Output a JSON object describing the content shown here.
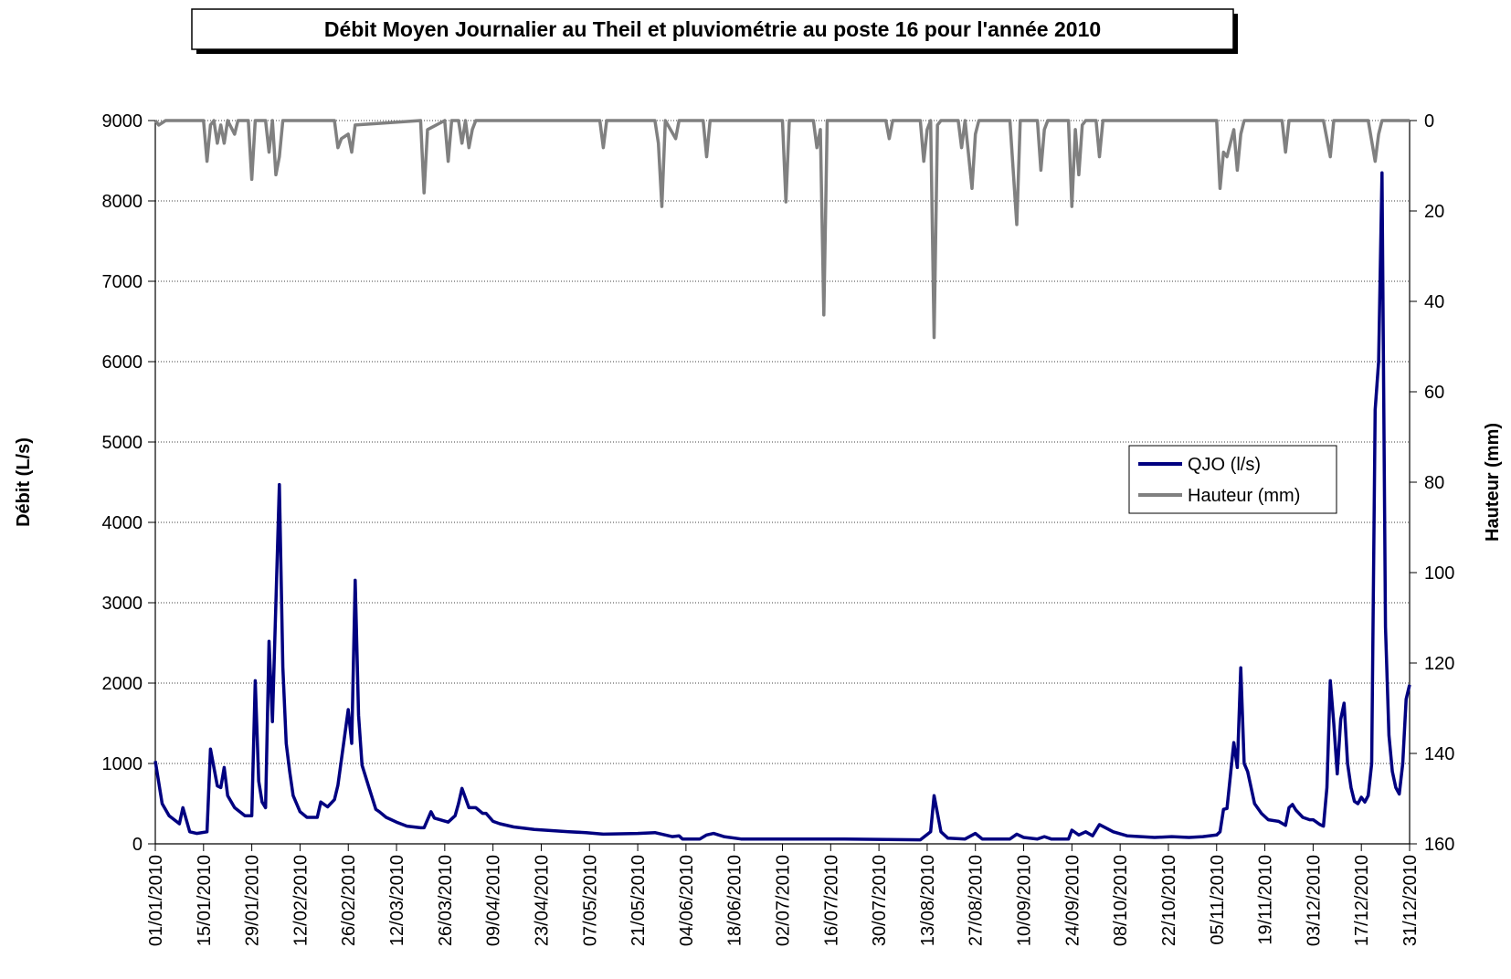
{
  "chart_data": {
    "type": "line",
    "title": "Débit Moyen Journalier au Theil et pluviométrie au poste 16 pour l'année 2010",
    "y_label": "Débit (L/s)",
    "y2_label": "Hauteur (mm)",
    "xlim": [
      "01/01/2010",
      "31/12/2010"
    ],
    "xticks": [
      "01/01/2010",
      "15/01/2010",
      "29/01/2010",
      "12/02/2010",
      "26/02/2010",
      "12/03/2010",
      "26/03/2010",
      "09/04/2010",
      "23/04/2010",
      "07/05/2010",
      "21/05/2010",
      "04/06/2010",
      "18/06/2010",
      "02/07/2010",
      "16/07/2010",
      "30/07/2010",
      "13/08/2010",
      "27/08/2010",
      "10/09/2010",
      "24/09/2010",
      "08/10/2010",
      "22/10/2010",
      "05/11/2010",
      "19/11/2010",
      "03/12/2010",
      "17/12/2010",
      "31/12/2010"
    ],
    "ylim": [
      0,
      9000
    ],
    "yticks": [
      0,
      1000,
      2000,
      3000,
      4000,
      5000,
      6000,
      7000,
      8000,
      9000
    ],
    "y2lim": [
      160,
      0
    ],
    "y2ticks": [
      0,
      20,
      40,
      60,
      80,
      100,
      120,
      140,
      160
    ],
    "grid": true,
    "legend": "right",
    "series": [
      {
        "name": "QJO (l/s)",
        "color": "#000080",
        "axis": "y",
        "x": [
          "01/01/2010",
          "03/01/2010",
          "05/01/2010",
          "08/01/2010",
          "09/01/2010",
          "11/01/2010",
          "13/01/2010",
          "16/01/2010",
          "17/01/2010",
          "19/01/2010",
          "20/01/2010",
          "21/01/2010",
          "22/01/2010",
          "24/01/2010",
          "27/01/2010",
          "29/01/2010",
          "30/01/2010",
          "31/01/2010",
          "01/02/2010",
          "02/02/2010",
          "03/02/2010",
          "04/02/2010",
          "06/02/2010",
          "07/02/2010",
          "08/02/2010",
          "09/02/2010",
          "10/02/2010",
          "12/02/2010",
          "14/02/2010",
          "17/02/2010",
          "18/02/2010",
          "20/02/2010",
          "22/02/2010",
          "23/02/2010",
          "26/02/2010",
          "27/02/2010",
          "28/02/2010",
          "01/03/2010",
          "02/03/2010",
          "04/03/2010",
          "06/03/2010",
          "07/03/2010",
          "09/03/2010",
          "12/03/2010",
          "15/03/2010",
          "19/03/2010",
          "20/03/2010",
          "22/03/2010",
          "23/03/2010",
          "27/03/2010",
          "29/03/2010",
          "30/03/2010",
          "31/03/2010",
          "02/04/2010",
          "04/04/2010",
          "06/04/2010",
          "07/04/2010",
          "09/04/2010",
          "11/04/2010",
          "15/04/2010",
          "21/04/2010",
          "01/05/2010",
          "06/05/2010",
          "11/05/2010",
          "21/05/2010",
          "26/05/2010",
          "31/05/2010",
          "02/06/2010",
          "03/06/2010",
          "08/06/2010",
          "10/06/2010",
          "12/06/2010",
          "15/06/2010",
          "20/06/2010",
          "30/06/2010",
          "20/07/2010",
          "11/08/2010",
          "14/08/2010",
          "15/08/2010",
          "17/08/2010",
          "19/08/2010",
          "24/08/2010",
          "27/08/2010",
          "29/08/2010",
          "06/09/2010",
          "08/09/2010",
          "10/09/2010",
          "14/09/2010",
          "16/09/2010",
          "18/09/2010",
          "23/09/2010",
          "24/09/2010",
          "26/09/2010",
          "28/09/2010",
          "30/09/2010",
          "02/10/2010",
          "06/10/2010",
          "10/10/2010",
          "18/10/2010",
          "23/10/2010",
          "28/10/2010",
          "01/11/2010",
          "05/11/2010",
          "06/11/2010",
          "07/11/2010",
          "08/11/2010",
          "10/11/2010",
          "11/11/2010",
          "12/11/2010",
          "13/11/2010",
          "14/11/2010",
          "16/11/2010",
          "18/11/2010",
          "20/11/2010",
          "23/11/2010",
          "25/11/2010",
          "26/11/2010",
          "27/11/2010",
          "28/11/2010",
          "30/11/2010",
          "02/12/2010",
          "03/12/2010",
          "05/12/2010",
          "06/12/2010",
          "07/12/2010",
          "08/12/2010",
          "09/12/2010",
          "10/12/2010",
          "11/12/2010",
          "12/12/2010",
          "13/12/2010",
          "14/12/2010",
          "15/12/2010",
          "16/12/2010",
          "17/12/2010",
          "18/12/2010",
          "19/12/2010",
          "20/12/2010",
          "21/12/2010",
          "22/12/2010",
          "23/12/2010",
          "24/12/2010",
          "25/12/2010",
          "26/12/2010",
          "27/12/2010",
          "28/12/2010",
          "29/12/2010",
          "30/12/2010",
          "31/12/2010"
        ],
        "values": [
          1030,
          500,
          350,
          250,
          450,
          150,
          130,
          150,
          1180,
          720,
          700,
          950,
          600,
          450,
          350,
          350,
          2030,
          780,
          520,
          450,
          2520,
          1520,
          4470,
          2200,
          1250,
          900,
          600,
          400,
          330,
          330,
          520,
          460,
          550,
          730,
          1670,
          1250,
          3280,
          1600,
          980,
          700,
          430,
          400,
          330,
          270,
          220,
          200,
          200,
          400,
          320,
          270,
          350,
          500,
          690,
          450,
          450,
          380,
          380,
          280,
          250,
          210,
          180,
          150,
          140,
          120,
          130,
          140,
          90,
          100,
          60,
          60,
          110,
          130,
          90,
          60,
          60,
          60,
          50,
          150,
          600,
          150,
          70,
          60,
          130,
          60,
          60,
          120,
          80,
          60,
          90,
          60,
          60,
          170,
          110,
          150,
          100,
          240,
          150,
          100,
          80,
          90,
          80,
          90,
          110,
          150,
          430,
          440,
          1260,
          950,
          2190,
          1000,
          900,
          500,
          380,
          300,
          280,
          230,
          450,
          490,
          420,
          330,
          300,
          300,
          240,
          220,
          700,
          2030,
          1500,
          870,
          1550,
          1750,
          1000,
          700,
          530,
          500,
          580,
          520,
          600,
          1000,
          5400,
          6000,
          8350,
          2700,
          1350,
          900,
          700,
          620,
          1000,
          1800,
          1980
        ]
      },
      {
        "name": "Hauteur (mm)",
        "color": "#808080",
        "axis": "y2",
        "x": [
          "01/01/2010",
          "02/01/2010",
          "04/01/2010",
          "15/01/2010",
          "16/01/2010",
          "17/01/2010",
          "18/01/2010",
          "19/01/2010",
          "20/01/2010",
          "21/01/2010",
          "22/01/2010",
          "24/01/2010",
          "25/01/2010",
          "28/01/2010",
          "29/01/2010",
          "30/01/2010",
          "02/02/2010",
          "03/02/2010",
          "04/02/2010",
          "05/02/2010",
          "06/02/2010",
          "07/02/2010",
          "22/02/2010",
          "23/02/2010",
          "24/02/2010",
          "26/02/2010",
          "27/02/2010",
          "28/02/2010",
          "19/03/2010",
          "20/03/2010",
          "21/03/2010",
          "26/03/2010",
          "27/03/2010",
          "28/03/2010",
          "30/03/2010",
          "31/03/2010",
          "01/04/2010",
          "02/04/2010",
          "03/04/2010",
          "04/04/2010",
          "10/05/2010",
          "11/05/2010",
          "12/05/2010",
          "26/05/2010",
          "27/05/2010",
          "28/05/2010",
          "29/05/2010",
          "01/06/2010",
          "02/06/2010",
          "09/06/2010",
          "10/06/2010",
          "11/06/2010",
          "02/07/2010",
          "03/07/2010",
          "04/07/2010",
          "11/07/2010",
          "12/07/2010",
          "13/07/2010",
          "14/07/2010",
          "15/07/2010",
          "01/08/2010",
          "02/08/2010",
          "03/08/2010",
          "11/08/2010",
          "12/08/2010",
          "13/08/2010",
          "14/08/2010",
          "15/08/2010",
          "16/08/2010",
          "17/08/2010",
          "22/08/2010",
          "23/08/2010",
          "24/08/2010",
          "26/08/2010",
          "27/08/2010",
          "28/08/2010",
          "06/09/2010",
          "08/09/2010",
          "09/09/2010",
          "14/09/2010",
          "15/09/2010",
          "16/09/2010",
          "17/09/2010",
          "23/09/2010",
          "24/09/2010",
          "25/09/2010",
          "26/09/2010",
          "27/09/2010",
          "28/09/2010",
          "01/10/2010",
          "02/10/2010",
          "03/10/2010",
          "05/11/2010",
          "06/11/2010",
          "07/11/2010",
          "08/11/2010",
          "10/11/2010",
          "11/11/2010",
          "12/11/2010",
          "13/11/2010",
          "24/11/2010",
          "25/11/2010",
          "26/11/2010",
          "06/12/2010",
          "08/12/2010",
          "09/12/2010",
          "19/12/2010",
          "21/12/2010",
          "22/12/2010",
          "23/12/2010",
          "31/12/2010"
        ],
        "values": [
          0,
          1,
          0,
          0,
          9,
          1,
          0,
          5,
          1,
          5,
          0,
          3,
          0,
          0,
          13,
          0,
          0,
          7,
          0,
          12,
          8,
          0,
          0,
          6,
          4,
          3,
          7,
          1,
          0,
          16,
          2,
          0,
          9,
          0,
          0,
          5,
          0,
          6,
          2,
          0,
          0,
          6,
          0,
          0,
          5,
          19,
          0,
          4,
          0,
          0,
          8,
          0,
          0,
          18,
          0,
          0,
          6,
          2,
          43,
          0,
          0,
          4,
          0,
          0,
          9,
          2,
          0,
          48,
          1,
          0,
          0,
          6,
          0,
          15,
          3,
          0,
          0,
          23,
          0,
          0,
          11,
          2,
          0,
          0,
          19,
          2,
          12,
          1,
          0,
          0,
          8,
          0,
          0,
          15,
          7,
          8,
          2,
          11,
          3,
          0,
          0,
          7,
          0,
          0,
          8,
          0,
          0,
          9,
          3,
          0,
          0
        ]
      }
    ]
  }
}
